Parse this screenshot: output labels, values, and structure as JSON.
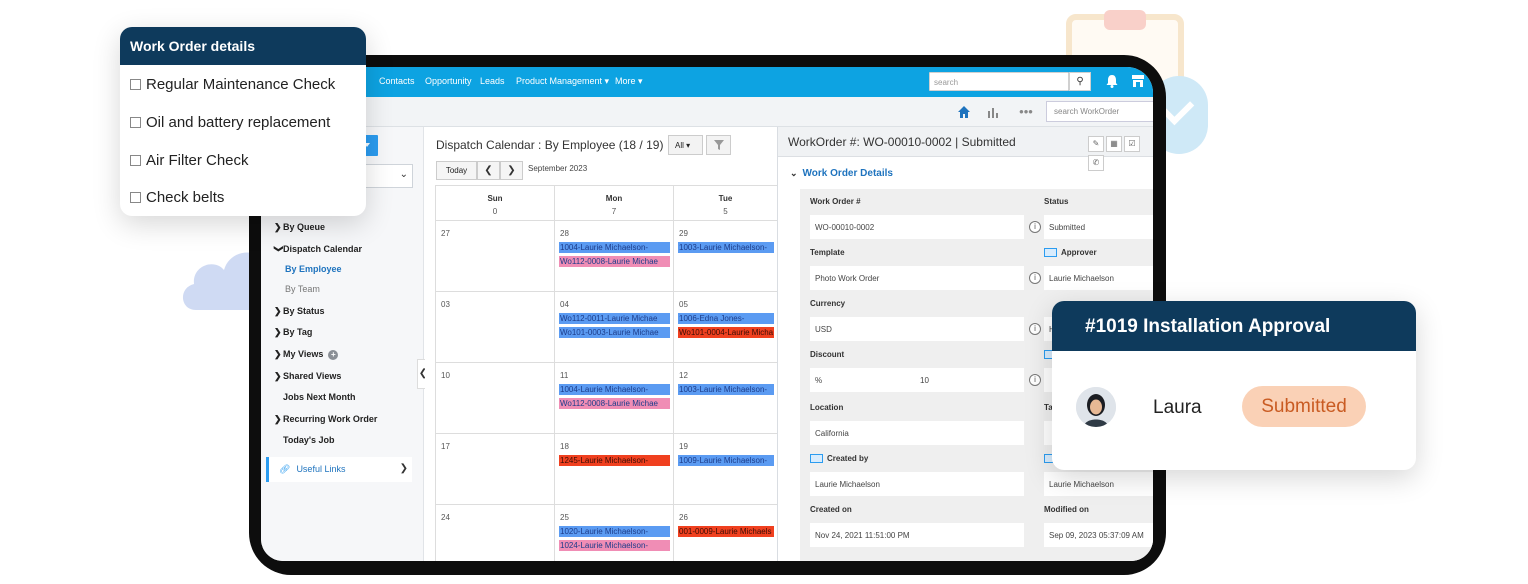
{
  "colors": {
    "nav": "#0da3e2",
    "accent": "#1e73be",
    "card_header": "#0e3a5c",
    "event_blue": "#5b9bf2",
    "event_pink": "#f08db5",
    "event_red": "#f0401f",
    "badge_bg": "#fad1b6",
    "badge_text": "#c95b22"
  },
  "topnav": {
    "items": [
      "Contacts",
      "Opportunity",
      "Leads",
      "Product Management ▾",
      "More ▾"
    ],
    "search_placeholder": "search",
    "icons": [
      "search-icon",
      "bell-icon",
      "store-icon"
    ]
  },
  "subbar": {
    "search_placeholder": "search WorkOrder",
    "icons": [
      "home-icon",
      "bar-chart-icon",
      "more-dots-icon"
    ]
  },
  "sidebar": {
    "items": [
      {
        "label": "By Queue",
        "caret": "❯"
      },
      {
        "label": "Dispatch Calendar",
        "caret": "❯"
      },
      {
        "label": "By Employee",
        "caret": ""
      },
      {
        "label": "By Team",
        "caret": ""
      },
      {
        "label": "By Status",
        "caret": "❯"
      },
      {
        "label": "By Tag",
        "caret": "❯"
      },
      {
        "label": "My Views",
        "caret": "❯"
      },
      {
        "label": "Shared Views",
        "caret": "❯"
      },
      {
        "label": "Jobs Next Month",
        "caret": ""
      },
      {
        "label": "Recurring Work Order",
        "caret": "❯"
      },
      {
        "label": "Today's Job",
        "caret": ""
      }
    ],
    "useful_links": "Useful Links"
  },
  "calendar": {
    "title": "Dispatch Calendar : By Employee (18 / 19)",
    "filter_all": "All ▾",
    "today": "Today",
    "prev": "❮",
    "next": "❯",
    "month": "September 2023",
    "days": [
      {
        "name": "Sun",
        "date": "0"
      },
      {
        "name": "Mon",
        "date": "7"
      },
      {
        "name": "Tue",
        "date": "5"
      }
    ],
    "weeks": [
      [
        {
          "num": "27",
          "events": []
        },
        {
          "num": "28",
          "events": [
            {
              "text": "1004-Laurie Michaelson-",
              "color": "blue"
            },
            {
              "text": "Wo112-0008-Laurie Michae",
              "color": "pink"
            }
          ]
        },
        {
          "num": "29",
          "events": [
            {
              "text": "1003-Laurie Michaelson-",
              "color": "blue"
            }
          ]
        }
      ],
      [
        {
          "num": "03",
          "events": []
        },
        {
          "num": "04",
          "events": [
            {
              "text": "Wo112-0011-Laurie Michae",
              "color": "blue"
            },
            {
              "text": "Wo101-0003-Laurie Michae",
              "color": "blue"
            }
          ]
        },
        {
          "num": "05",
          "events": [
            {
              "text": "1006-Edna Jones-",
              "color": "blue"
            },
            {
              "text": "Wo101-0004-Laurie Micha",
              "color": "red"
            }
          ]
        }
      ],
      [
        {
          "num": "10",
          "events": []
        },
        {
          "num": "11",
          "events": [
            {
              "text": "1004-Laurie Michaelson-",
              "color": "blue"
            },
            {
              "text": "Wo112-0008-Laurie Michae",
              "color": "pink"
            }
          ]
        },
        {
          "num": "12",
          "events": [
            {
              "text": "1003-Laurie Michaelson-",
              "color": "blue"
            }
          ]
        }
      ],
      [
        {
          "num": "17",
          "events": []
        },
        {
          "num": "18",
          "events": [
            {
              "text": "1245-Laurie Michaelson-",
              "color": "red"
            }
          ]
        },
        {
          "num": "19",
          "events": [
            {
              "text": "1009-Laurie Michaelson-",
              "color": "blue"
            }
          ]
        }
      ],
      [
        {
          "num": "24",
          "events": []
        },
        {
          "num": "25",
          "events": [
            {
              "text": "1020-Laurie Michaelson-",
              "color": "blue"
            },
            {
              "text": "1024-Laurie Michaelson-",
              "color": "pink"
            }
          ]
        },
        {
          "num": "26",
          "events": [
            {
              "text": "001-0009-Laurie Michaels",
              "color": "red"
            }
          ]
        }
      ]
    ]
  },
  "workorder": {
    "title": "WorkOrder #: WO-00010-0002 | Submitted",
    "section": "Work Order Details",
    "fields_left": [
      {
        "label": "Work Order #",
        "value": "WO-00010-0002"
      },
      {
        "label": "Template",
        "value": "Photo Work Order"
      },
      {
        "label": "Currency",
        "value": "USD"
      },
      {
        "label": "Discount",
        "value": "%",
        "value2": "10"
      },
      {
        "label": "Location",
        "value": "California"
      },
      {
        "label": "Created by",
        "value": "Laurie Michaelson"
      },
      {
        "label": "Created on",
        "value": "Nov 24, 2021 11:51:00 PM"
      }
    ],
    "fields_right": [
      {
        "label": "Status",
        "value": "Submitted"
      },
      {
        "label": "Approver",
        "value": "Laurie Michaelson"
      },
      {
        "label": "",
        "value": "H"
      },
      {
        "label": "",
        "value": ""
      },
      {
        "label": "Ta",
        "value": ""
      },
      {
        "label": "",
        "value": "Laurie Michaelson"
      },
      {
        "label": "Modified on",
        "value": "Sep 09, 2023 05:37:09 AM"
      }
    ]
  },
  "checklist": {
    "title": "Work Order details",
    "items": [
      "Regular Maintenance Check",
      "Oil and battery replacement",
      "Air Filter Check",
      "Check belts"
    ]
  },
  "approval": {
    "title": "#1019 Installation Approval",
    "name": "Laura",
    "status": "Submitted"
  }
}
